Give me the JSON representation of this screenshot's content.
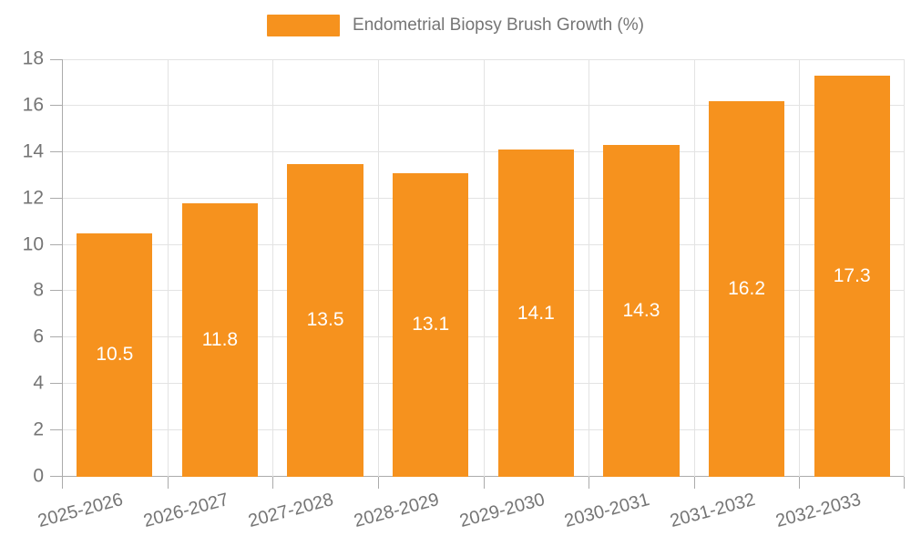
{
  "chart_data": {
    "type": "bar",
    "title": "",
    "legend_label": "Endometrial Biopsy Brush Growth (%)",
    "legend_position": "top-center",
    "categories": [
      "2025-2026",
      "2026-2027",
      "2027-2028",
      "2028-2029",
      "2029-2030",
      "2030-2031",
      "2031-2032",
      "2032-2033"
    ],
    "values": [
      10.5,
      11.8,
      13.5,
      13.1,
      14.1,
      14.3,
      16.2,
      17.3
    ],
    "value_labels": [
      "10.5",
      "11.8",
      "13.5",
      "13.1",
      "14.1",
      "14.3",
      "16.2",
      "17.3"
    ],
    "xlabel": "",
    "ylabel": "",
    "ylim": [
      0,
      18
    ],
    "ytick_step": 2,
    "grid": true,
    "bar_width_frac": 0.72,
    "x_label_rotation_deg": -15,
    "colors": {
      "bar": "#F6921E",
      "grid": "#E3E3E3",
      "axis_line": "#ABABAB",
      "axis_text": "#757575",
      "value_label": "#FFFFFF",
      "background": "#FFFFFF"
    }
  }
}
